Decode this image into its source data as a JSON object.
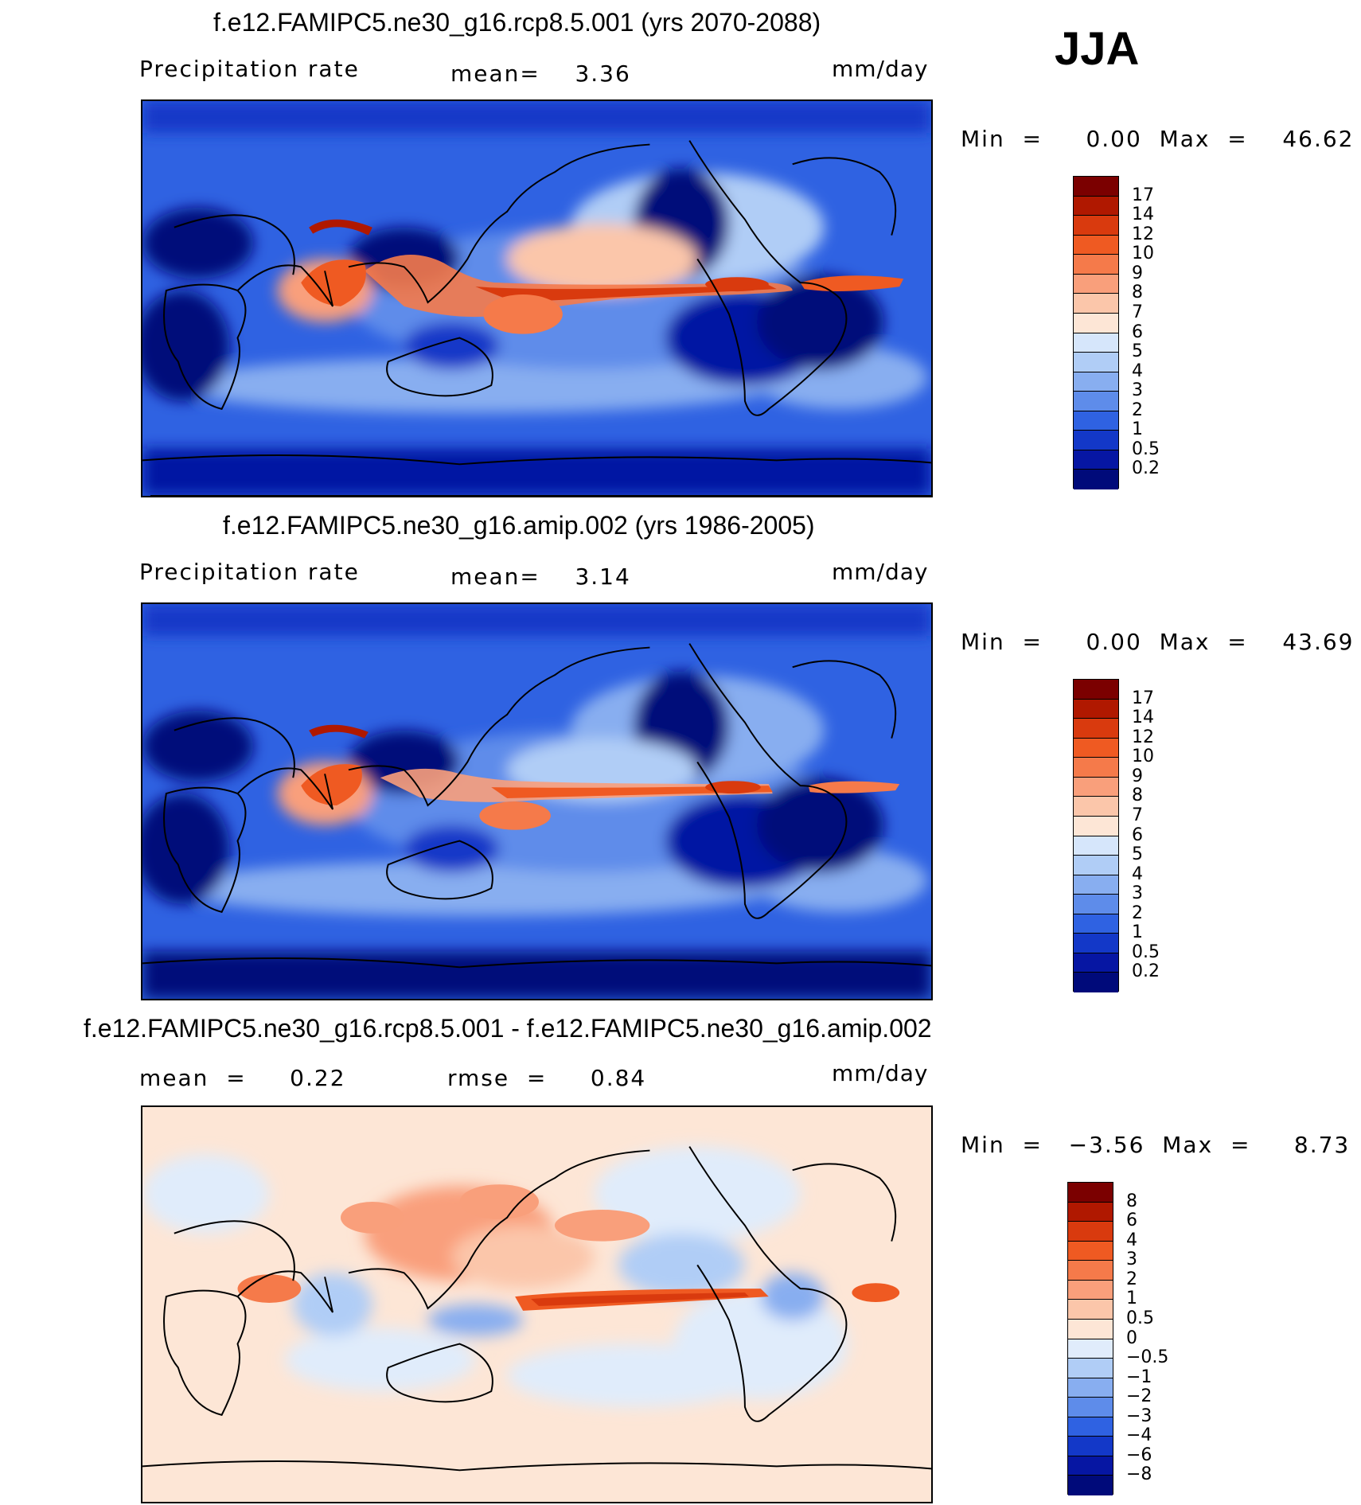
{
  "season": "JJA",
  "panels": [
    {
      "title": "f.e12.FAMIPC5.ne30_g16.rcp8.5.001 (yrs 2070-2088)",
      "variable": "Precipitation rate",
      "stat1": "mean=    3.36",
      "units": "mm/day",
      "minmax": "Min  =     0.00  Max  =    46.62",
      "levels": [
        "17",
        "14",
        "12",
        "10",
        "9",
        "8",
        "7",
        "6",
        "5",
        "4",
        "3",
        "2",
        "1",
        "0.5",
        "0.2"
      ]
    },
    {
      "title": "f.e12.FAMIPC5.ne30_g16.amip.002 (yrs 1986-2005)",
      "variable": "Precipitation rate",
      "stat1": "mean=    3.14",
      "units": "mm/day",
      "minmax": "Min  =     0.00  Max  =    43.69",
      "levels": [
        "17",
        "14",
        "12",
        "10",
        "9",
        "8",
        "7",
        "6",
        "5",
        "4",
        "3",
        "2",
        "1",
        "0.5",
        "0.2"
      ]
    },
    {
      "title": "f.e12.FAMIPC5.ne30_g16.rcp8.5.001 - f.e12.FAMIPC5.ne30_g16.amip.002",
      "stat1": "mean  =     0.22",
      "stat2": "rmse  =     0.84",
      "units": "mm/day",
      "minmax": "Min  =   −3.56  Max  =     8.73",
      "levels": [
        "8",
        "6",
        "4",
        "3",
        "2",
        "1",
        "0.5",
        "0",
        "−0.5",
        "−1",
        "−2",
        "−3",
        "−4",
        "−6",
        "−8"
      ]
    }
  ],
  "colors": {
    "precip_scale": [
      "#7b0000",
      "#b01800",
      "#d93a0e",
      "#ef5a22",
      "#f57a4a",
      "#f99f7b",
      "#fbc6aa",
      "#fde6d6",
      "#d6e6fb",
      "#b0cdf6",
      "#88aef0",
      "#5e8cea",
      "#2f62e2",
      "#1338c8",
      "#0616a3",
      "#000a7a"
    ],
    "diff_scale": [
      "#7b0000",
      "#b01800",
      "#d93a0e",
      "#ef5a22",
      "#f57a4a",
      "#f99f7b",
      "#fbc6aa",
      "#fde6d6",
      "#e0ecfb",
      "#b0cdf6",
      "#88aef0",
      "#5e8cea",
      "#2f62e2",
      "#1338c8",
      "#0616a3",
      "#000a7a"
    ]
  }
}
